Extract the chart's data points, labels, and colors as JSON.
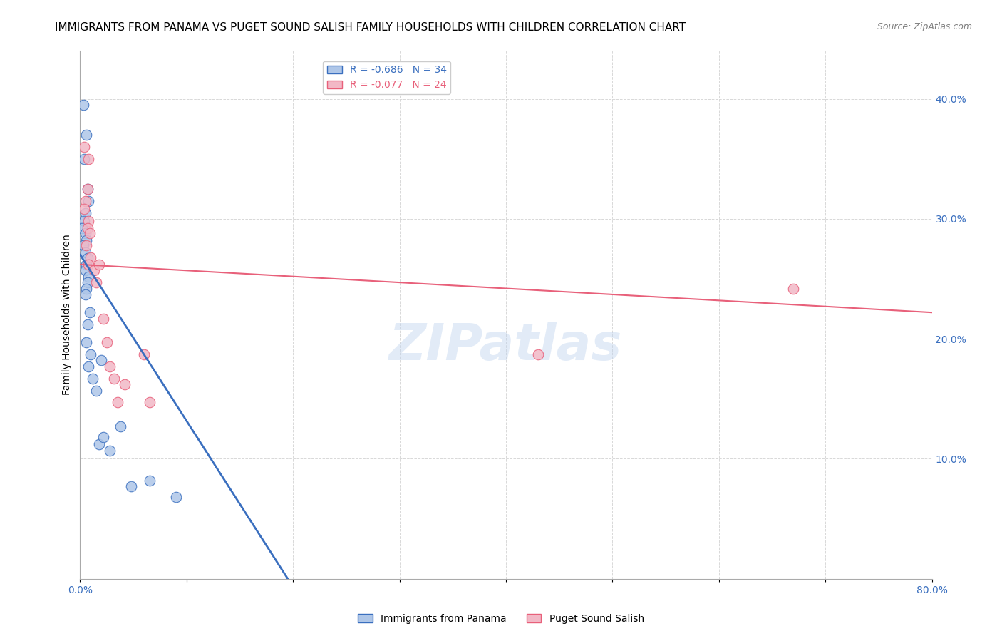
{
  "title": "IMMIGRANTS FROM PANAMA VS PUGET SOUND SALISH FAMILY HOUSEHOLDS WITH CHILDREN CORRELATION CHART",
  "source": "Source: ZipAtlas.com",
  "xlim": [
    0.0,
    0.8
  ],
  "ylim": [
    0.0,
    0.44
  ],
  "blue_R": "-0.686",
  "blue_N": "34",
  "pink_R": "-0.077",
  "pink_N": "24",
  "blue_color": "#aec6e8",
  "blue_line_color": "#3a6fbf",
  "pink_color": "#f2b8c6",
  "pink_line_color": "#e8607a",
  "legend_label_blue": "Immigrants from Panama",
  "legend_label_pink": "Puget Sound Salish",
  "ylabel": "Family Households with Children",
  "watermark": "ZIPatlas",
  "blue_scatter_x": [
    0.003,
    0.006,
    0.004,
    0.007,
    0.008,
    0.005,
    0.004,
    0.002,
    0.005,
    0.006,
    0.003,
    0.005,
    0.007,
    0.006,
    0.005,
    0.008,
    0.007,
    0.006,
    0.005,
    0.009,
    0.007,
    0.006,
    0.01,
    0.008,
    0.012,
    0.015,
    0.018,
    0.022,
    0.028,
    0.02,
    0.038,
    0.048,
    0.065,
    0.09
  ],
  "blue_scatter_y": [
    0.395,
    0.37,
    0.35,
    0.325,
    0.315,
    0.305,
    0.298,
    0.292,
    0.288,
    0.282,
    0.278,
    0.272,
    0.267,
    0.262,
    0.257,
    0.252,
    0.247,
    0.242,
    0.237,
    0.222,
    0.212,
    0.197,
    0.187,
    0.177,
    0.167,
    0.157,
    0.112,
    0.118,
    0.107,
    0.182,
    0.127,
    0.077,
    0.082,
    0.068
  ],
  "pink_scatter_x": [
    0.004,
    0.008,
    0.007,
    0.005,
    0.004,
    0.008,
    0.007,
    0.009,
    0.006,
    0.01,
    0.008,
    0.013,
    0.015,
    0.018,
    0.022,
    0.025,
    0.028,
    0.032,
    0.035,
    0.042,
    0.06,
    0.065,
    0.43,
    0.67
  ],
  "pink_scatter_y": [
    0.36,
    0.35,
    0.325,
    0.315,
    0.308,
    0.298,
    0.292,
    0.288,
    0.278,
    0.268,
    0.262,
    0.257,
    0.247,
    0.262,
    0.217,
    0.197,
    0.177,
    0.167,
    0.147,
    0.162,
    0.187,
    0.147,
    0.187,
    0.242
  ],
  "blue_line_x0": 0.0,
  "blue_line_y0": 0.27,
  "blue_line_x1": 0.195,
  "blue_line_y1": 0.0,
  "pink_line_x0": 0.0,
  "pink_line_y0": 0.262,
  "pink_line_x1": 0.8,
  "pink_line_y1": 0.222,
  "xticks": [
    0.0,
    0.1,
    0.2,
    0.3,
    0.4,
    0.5,
    0.6,
    0.7,
    0.8
  ],
  "yticks": [
    0.0,
    0.1,
    0.2,
    0.3,
    0.4
  ],
  "grid_color": "#d8d8d8",
  "background_color": "#ffffff",
  "title_fontsize": 11,
  "source_fontsize": 9,
  "axis_label_fontsize": 10,
  "tick_fontsize": 10,
  "legend_fontsize": 10,
  "watermark_fontsize": 52,
  "watermark_color": "#c0d4ee",
  "watermark_alpha": 0.45
}
